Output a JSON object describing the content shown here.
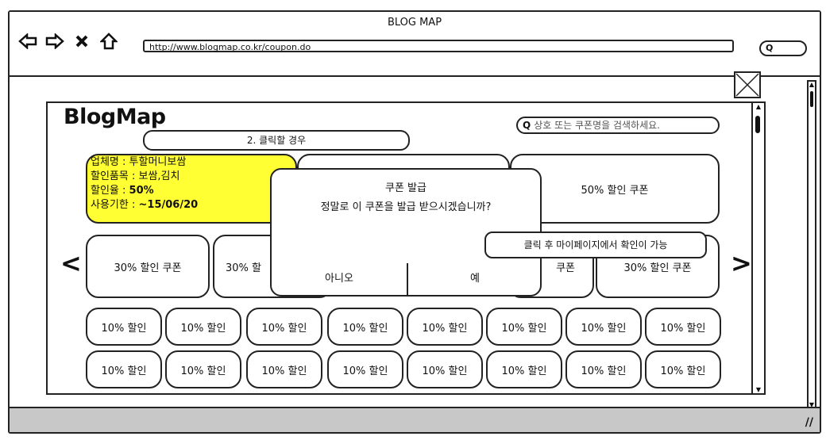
{
  "caption": "",
  "window": {
    "title": "BLOG MAP",
    "url": "http://www.blogmap.co.kr/coupon.do",
    "search_icon": "Q"
  },
  "page": {
    "logo": "BlogMap",
    "search_placeholder": "상호 또는 쿠폰명을 검색하세요.",
    "search_icon": "Q",
    "callout_top": "2. 클릭할 경우",
    "info_card": {
      "lines": [
        {
          "label": "업체명 : ",
          "value": "투할머니보쌈"
        },
        {
          "label": "할인품목 : ",
          "value": "보쌈,김치"
        },
        {
          "label": "할인율 : ",
          "value": "50%"
        },
        {
          "label": "사용기한 : ",
          "value": "~15/06/20"
        }
      ]
    },
    "card_50": "50% 할인 쿠폰",
    "row2": [
      "30% 할인 쿠폰",
      "30% 할",
      "쿠폰",
      "30% 할인 쿠폰"
    ],
    "arrow_left": "<",
    "arrow_right": ">",
    "small_row1": [
      "10% 할인",
      "10% 할인",
      "10% 할인",
      "10% 할인",
      "10% 할인",
      "10% 할인",
      "10% 할인",
      "10% 할인"
    ],
    "small_row2": [
      "10% 할인",
      "10% 할인",
      "10% 할인",
      "10% 할인",
      "10% 할인",
      "10% 할인",
      "10% 할인",
      "10% 할인"
    ],
    "dialog": {
      "title": "쿠폰 발급",
      "message": "정말로 이 쿠폰을 발급 받으시겠습니까?",
      "no_label": "아니오",
      "yes_label": "예"
    },
    "callout_bottom": "클릭 후 마이페이지에서 확인이 가능"
  }
}
